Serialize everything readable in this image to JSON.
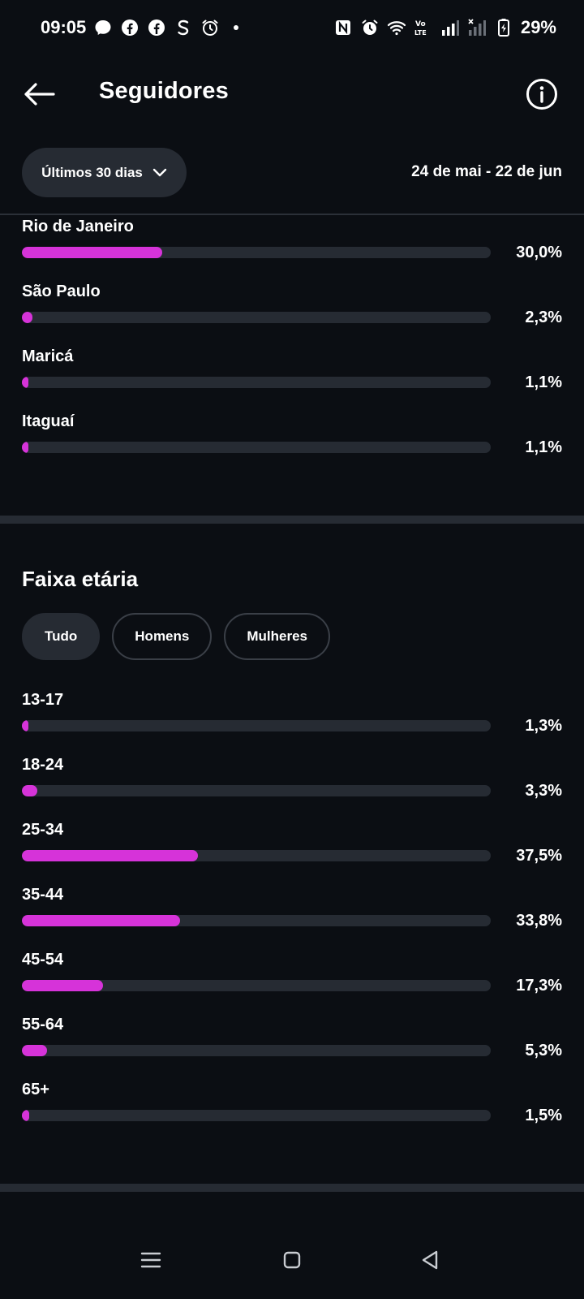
{
  "status_bar": {
    "time": "09:05",
    "battery": "29%",
    "left_icons": [
      "messenger-icon",
      "facebook-icon",
      "facebook-icon",
      "s-app-icon",
      "alarm-icon"
    ],
    "right_icons": [
      "nfc-icon",
      "alarm-icon",
      "wifi-icon",
      "volte-icon",
      "signal-icon",
      "signal-off-icon",
      "battery-charging-icon"
    ]
  },
  "header": {
    "title": "Seguidores",
    "back_icon": "arrow-left-icon",
    "info_icon": "info-icon"
  },
  "filter": {
    "period_label": "Últimos 30 dias",
    "period_icon": "chevron-down-icon",
    "date_range": "24 de mai - 22 de jun"
  },
  "cities": [
    {
      "label": "Rio de Janeiro",
      "value": "30,0%",
      "percent": 30.0
    },
    {
      "label": "São Paulo",
      "value": "2,3%",
      "percent": 2.3
    },
    {
      "label": "Maricá",
      "value": "1,1%",
      "percent": 1.1
    },
    {
      "label": "Itaguaí",
      "value": "1,1%",
      "percent": 1.1
    }
  ],
  "age": {
    "title": "Faixa etária",
    "tabs": [
      {
        "label": "Tudo",
        "active": true
      },
      {
        "label": "Homens",
        "active": false
      },
      {
        "label": "Mulheres",
        "active": false
      }
    ],
    "rows": [
      {
        "label": "13-17",
        "value": "1,3%",
        "percent": 1.3
      },
      {
        "label": "18-24",
        "value": "3,3%",
        "percent": 3.3
      },
      {
        "label": "25-34",
        "value": "37,5%",
        "percent": 37.5
      },
      {
        "label": "35-44",
        "value": "33,8%",
        "percent": 33.8
      },
      {
        "label": "45-54",
        "value": "17,3%",
        "percent": 17.3
      },
      {
        "label": "55-64",
        "value": "5,3%",
        "percent": 5.3
      },
      {
        "label": "65+",
        "value": "1,5%",
        "percent": 1.5
      }
    ]
  },
  "colors": {
    "background": "#0b0e13",
    "accent": "#d633d9",
    "track": "#262b33"
  },
  "nav": {
    "icons": [
      "menu-icon",
      "home-square-icon",
      "back-triangle-icon"
    ]
  }
}
